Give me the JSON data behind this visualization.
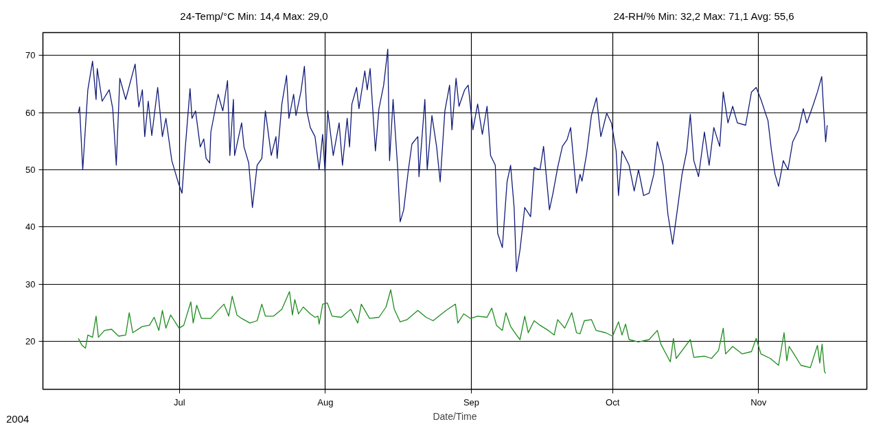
{
  "chart_data": {
    "type": "line",
    "xlabel": "Date/Time",
    "annotations": [
      "24-Temp/°C Min: 14,4 Max: 29,0",
      "24-RH/% Min: 32,2 Max: 71,1 Avg: 55,6",
      "2004"
    ],
    "xlim": [
      "2004-06-02",
      "2004-11-24"
    ],
    "ylim": [
      11.6,
      74
    ],
    "xticks": [
      {
        "value": "2004-07-01",
        "label": "Jul"
      },
      {
        "value": "2004-08-01",
        "label": "Aug"
      },
      {
        "value": "2004-09-01",
        "label": "Sep"
      },
      {
        "value": "2004-10-01",
        "label": "Oct"
      },
      {
        "value": "2004-11-01",
        "label": "Nov"
      }
    ],
    "yticks": [
      20,
      30,
      40,
      50,
      60,
      70
    ],
    "grid": true,
    "series": [
      {
        "color": "#101a78",
        "x": [
          "2004-06-09T13:00",
          "2004-06-09T19:00",
          "2004-06-10T11:00",
          "2004-06-11T13:00",
          "2004-06-12T13:00",
          "2004-06-13T07:00",
          "2004-06-13T13:00",
          "2004-06-14T14:00",
          "2004-06-16T02:00",
          "2004-06-16T20:00",
          "2004-06-17T14:00",
          "2004-06-18T08:00",
          "2004-06-19T14:00",
          "2004-06-21T14:00",
          "2004-06-22T09:00",
          "2004-06-23T03:00",
          "2004-06-23T15:00",
          "2004-06-24T09:00",
          "2004-06-25T03:00",
          "2004-06-26T09:00",
          "2004-06-27T09:00",
          "2004-06-28T03:00",
          "2004-06-29T09:00",
          "2004-06-30T16:00",
          "2004-07-01T13:00",
          "2004-07-02T06:00",
          "2004-07-03T06:00",
          "2004-07-03T16:00",
          "2004-07-04T10:00",
          "2004-07-05T10:00",
          "2004-07-06T04:00",
          "2004-07-06T16:00",
          "2004-07-07T10:00",
          "2004-07-07T16:00",
          "2004-07-09T05:00",
          "2004-07-10T05:00",
          "2004-07-11T05:00",
          "2004-07-11T17:00",
          "2004-07-12T11:00",
          "2004-07-12T17:00",
          "2004-07-14T05:00",
          "2004-07-14T17:00",
          "2004-07-15T17:00",
          "2004-07-16T12:00",
          "2004-07-17T12:00",
          "2004-07-18T12:00",
          "2004-07-19T06:00",
          "2004-07-20T12:00",
          "2004-07-21T12:00",
          "2004-07-21T18:00",
          "2004-07-22T18:00",
          "2004-07-23T18:00",
          "2004-07-24T06:00",
          "2004-07-25T06:00",
          "2004-07-25T18:00",
          "2004-07-26T19:00",
          "2004-07-27T13:00",
          "2004-07-28T01:00",
          "2004-07-28T19:00",
          "2004-07-29T19:00",
          "2004-07-30T16:00",
          "2004-07-31T10:00",
          "2004-07-31T22:00",
          "2004-08-01T12:00",
          "2004-08-02T16:00",
          "2004-08-03T22:00",
          "2004-08-04T15:00",
          "2004-08-05T15:00",
          "2004-08-06T03:00",
          "2004-08-06T15:00",
          "2004-08-07T15:00",
          "2004-08-08T03:00",
          "2004-08-09T09:00",
          "2004-08-09T21:00",
          "2004-08-10T12:00",
          "2004-08-11T15:00",
          "2004-08-12T09:00",
          "2004-08-13T09:00",
          "2004-08-14T06:00",
          "2004-08-14T15:00",
          "2004-08-15T09:00",
          "2004-08-16T09:00",
          "2004-08-16T21:00",
          "2004-08-17T15:00",
          "2004-08-18T15:00",
          "2004-08-19T09:00",
          "2004-08-20T15:00",
          "2004-08-20T21:00",
          "2004-08-22T03:00",
          "2004-08-22T15:00",
          "2004-08-23T15:00",
          "2004-08-24T15:00",
          "2004-08-25T09:00",
          "2004-08-26T09:00",
          "2004-08-27T09:00",
          "2004-08-27T21:00",
          "2004-08-28T18:00",
          "2004-08-29T09:00",
          "2004-08-30T14:00",
          "2004-08-31T08:00",
          "2004-09-01T08:00",
          "2004-09-02T08:00",
          "2004-09-03T08:00",
          "2004-09-04T08:00",
          "2004-09-05T02:00",
          "2004-09-06T02:00",
          "2004-09-06T14:00",
          "2004-09-07T14:00",
          "2004-09-08T14:00",
          "2004-09-09T08:00",
          "2004-09-10T02:00",
          "2004-09-10T14:00",
          "2004-09-11T08:00",
          "2004-09-12T08:00",
          "2004-09-13T14:00",
          "2004-09-14T08:00",
          "2004-09-15T14:00",
          "2004-09-16T08:00",
          "2004-09-17T14:00",
          "2004-09-18T08:00",
          "2004-09-19T08:00",
          "2004-09-20T08:00",
          "2004-09-21T08:00",
          "2004-09-22T02:00",
          "2004-09-23T08:00",
          "2004-09-24T02:00",
          "2004-09-24T12:00",
          "2004-09-25T12:00",
          "2004-09-26T12:00",
          "2004-09-27T14:00",
          "2004-09-28T12:00",
          "2004-09-29T18:00",
          "2004-09-30T18:00",
          "2004-10-01T18:00",
          "2004-10-02T06:00",
          "2004-10-03T00:00",
          "2004-10-04T12:00",
          "2004-10-05T14:00",
          "2004-10-06T12:00",
          "2004-10-07T14:00",
          "2004-10-08T18:00",
          "2004-10-09T18:00",
          "2004-10-10T12:00",
          "2004-10-11T18:00",
          "2004-10-12T18:00",
          "2004-10-13T18:00",
          "2004-10-14T18:00",
          "2004-10-15T18:00",
          "2004-10-16T18:00",
          "2004-10-17T12:00",
          "2004-10-18T06:00",
          "2004-10-19T06:00",
          "2004-10-20T12:00",
          "2004-10-21T12:00",
          "2004-10-22T12:00",
          "2004-10-23T18:00",
          "2004-10-24T12:00",
          "2004-10-25T12:00",
          "2004-10-26T12:00",
          "2004-10-27T12:00",
          "2004-10-29T06:00",
          "2004-10-30T12:00",
          "2004-10-31T12:00",
          "2004-11-01T12:00",
          "2004-11-03T00:00",
          "2004-11-03T18:00",
          "2004-11-04T12:00",
          "2004-11-05T06:00",
          "2004-11-06T06:00",
          "2004-11-07T06:00",
          "2004-11-08T06:00",
          "2004-11-09T12:00",
          "2004-11-10T12:00",
          "2004-11-11T06:00",
          "2004-11-12T12:00",
          "2004-11-13T12:00",
          "2004-11-14T10:00",
          "2004-11-14T18:00",
          "2004-11-15T06:00",
          "2004-11-15T14:00"
        ],
        "values": [
          60,
          61,
          50,
          64,
          69,
          62.3,
          67.7,
          62,
          64,
          60.7,
          50.8,
          66,
          62.3,
          68.5,
          61,
          64,
          55.8,
          62,
          56,
          64.4,
          55.8,
          59,
          51.6,
          48,
          45.9,
          54,
          64.2,
          59,
          60.3,
          54,
          55.4,
          52,
          51.2,
          56.6,
          63.2,
          60.3,
          65.6,
          52.5,
          62.3,
          52.5,
          58.2,
          54,
          51.2,
          43.4,
          50.8,
          52,
          60.3,
          52.5,
          55.8,
          52,
          61.5,
          66.5,
          59,
          63.2,
          59.5,
          63.6,
          68.1,
          60.3,
          57.4,
          55.8,
          50,
          56.2,
          49.6,
          60.3,
          52.5,
          58.2,
          50.8,
          59,
          54,
          61.5,
          64.4,
          60.7,
          67.3,
          64,
          67.7,
          53.3,
          60.7,
          64.8,
          71.1,
          51.6,
          62.3,
          50,
          40.9,
          43,
          50,
          54.5,
          55.8,
          48.8,
          62.3,
          50,
          59.5,
          54,
          47.9,
          60.3,
          64.8,
          57,
          66,
          61.1,
          64,
          64.8,
          57,
          61.5,
          56.2,
          61.1,
          52.5,
          50.8,
          38.9,
          36.4,
          47.9,
          50.8,
          43.4,
          32.2,
          36,
          43.4,
          41.8,
          50.4,
          50,
          54.1,
          43,
          45.9,
          50.4,
          54.1,
          55.3,
          57.4,
          45.9,
          49.2,
          48,
          52.9,
          59.5,
          62.6,
          55.8,
          59.9,
          58.2,
          53.3,
          45.5,
          53.3,
          50.8,
          46.3,
          50,
          45.5,
          45.9,
          49.2,
          54.9,
          50.8,
          42.2,
          37,
          43,
          49.2,
          53.3,
          59.7,
          51.6,
          48.8,
          56.6,
          50.8,
          57.4,
          54.1,
          63.6,
          58.2,
          61.1,
          58.2,
          57.8,
          63.6,
          64.4,
          62.3,
          58.6,
          53.3,
          49.2,
          47.1,
          51.6,
          50,
          54.9,
          57,
          60.7,
          58.2,
          61.1,
          63.6,
          66.3,
          61.5,
          54.9,
          57.8
        ]
      },
      {
        "color": "#1e8c1e",
        "x": [
          "2004-06-09T13:00",
          "2004-06-10T07:00",
          "2004-06-11T01:00",
          "2004-06-11T13:00",
          "2004-06-12T13:00",
          "2004-06-13T07:00",
          "2004-06-13T19:00",
          "2004-06-15T02:00",
          "2004-06-16T14:00",
          "2004-06-18T02:00",
          "2004-06-19T14:00",
          "2004-06-20T08:00",
          "2004-06-21T02:00",
          "2004-06-23T03:00",
          "2004-06-24T15:00",
          "2004-06-25T15:00",
          "2004-06-26T15:00",
          "2004-06-27T09:00",
          "2004-06-28T03:00",
          "2004-06-29T03:00",
          "2004-06-30T22:00",
          "2004-07-01T22:00",
          "2004-07-03T10:00",
          "2004-07-03T22:00",
          "2004-07-04T16:00",
          "2004-07-05T16:00",
          "2004-07-07T16:00",
          "2004-07-08T23:00",
          "2004-07-10T11:00",
          "2004-07-11T11:00",
          "2004-07-12T05:00",
          "2004-07-13T05:00",
          "2004-07-14T05:00",
          "2004-07-15T23:00",
          "2004-07-17T12:00",
          "2004-07-18T12:00",
          "2004-07-19T06:00",
          "2004-07-21T00:00",
          "2004-07-22T18:00",
          "2004-07-24T09:00",
          "2004-07-25T00:00",
          "2004-07-25T12:00",
          "2004-07-26T07:00",
          "2004-07-27T07:00",
          "2004-07-28T19:00",
          "2004-07-29T19:00",
          "2004-07-30T10:00",
          "2004-07-30T16:00",
          "2004-07-31T10:00",
          "2004-08-01T10:00",
          "2004-08-02T10:00",
          "2004-08-04T09:00",
          "2004-08-06T09:00",
          "2004-08-07T21:00",
          "2004-08-08T15:00",
          "2004-08-10T09:00",
          "2004-08-12T09:00",
          "2004-08-13T21:00",
          "2004-08-14T21:00",
          "2004-08-15T15:00",
          "2004-08-16T21:00",
          "2004-08-18T09:00",
          "2004-08-20T15:00",
          "2004-08-22T09:00",
          "2004-08-23T21:00",
          "2004-08-26T15:00",
          "2004-08-28T15:00",
          "2004-08-29T03:00",
          "2004-08-30T09:00",
          "2004-08-31T20:00",
          "2004-09-02T08:00",
          "2004-09-04T08:00",
          "2004-09-05T08:00",
          "2004-09-06T08:00",
          "2004-09-07T14:00",
          "2004-09-08T08:00",
          "2004-09-09T08:00",
          "2004-09-10T14:00",
          "2004-09-11T08:00",
          "2004-09-12T08:00",
          "2004-09-13T02:00",
          "2004-09-14T08:00",
          "2004-09-15T14:00",
          "2004-09-17T08:00",
          "2004-09-18T14:00",
          "2004-09-19T08:00",
          "2004-09-20T20:00",
          "2004-09-22T08:00",
          "2004-09-23T08:00",
          "2004-09-24T02:00",
          "2004-09-25T00:00",
          "2004-09-26T12:00",
          "2004-09-27T12:00",
          "2004-09-29T12:00",
          "2004-10-01T00:00",
          "2004-10-02T06:00",
          "2004-10-03T00:00",
          "2004-10-03T18:00",
          "2004-10-04T12:00",
          "2004-10-06T12:00",
          "2004-10-08T18:00",
          "2004-10-10T12:00",
          "2004-10-11T06:00",
          "2004-10-13T06:00",
          "2004-10-13T22:00",
          "2004-10-14T12:00",
          "2004-10-17T12:00",
          "2004-10-18T06:00",
          "2004-10-20T12:00",
          "2004-10-22T00:00",
          "2004-10-23T12:00",
          "2004-10-24T12:00",
          "2004-10-25T00:00",
          "2004-10-26T12:00",
          "2004-10-28T12:00",
          "2004-10-30T12:00",
          "2004-10-31T12:00",
          "2004-11-01T12:00",
          "2004-11-03T12:00",
          "2004-11-05T06:00",
          "2004-11-06T10:00",
          "2004-11-07T00:00",
          "2004-11-07T12:00",
          "2004-11-08T12:00",
          "2004-11-10T00:00",
          "2004-11-12T00:00",
          "2004-11-13T12:00",
          "2004-11-14T00:00",
          "2004-11-14T12:00",
          "2004-11-15T00:00",
          "2004-11-15T06:00"
        ],
        "values": [
          20.5,
          19.3,
          18.8,
          21.1,
          20.7,
          24.4,
          20.7,
          21.9,
          22.1,
          20.9,
          21.1,
          25,
          21.5,
          22.6,
          22.8,
          24.2,
          21.9,
          25.4,
          22.3,
          24.6,
          22.3,
          22.8,
          26.9,
          23.2,
          26.3,
          24,
          24,
          25.2,
          26.5,
          24.4,
          27.9,
          24.6,
          24,
          23.2,
          23.6,
          26.5,
          24.4,
          24.4,
          25.6,
          28.7,
          24.6,
          27.3,
          24.8,
          26,
          24.8,
          24.2,
          24.4,
          23,
          26.5,
          26.7,
          24.4,
          24.2,
          25.6,
          23.2,
          26.5,
          24,
          24.2,
          26,
          29,
          25.6,
          23.4,
          23.8,
          25.4,
          24.2,
          23.6,
          25.4,
          26.5,
          23.2,
          24.8,
          24,
          24.4,
          24.2,
          25.8,
          22.8,
          21.9,
          25,
          22.6,
          21.1,
          20.3,
          24.4,
          21.5,
          23.6,
          22.8,
          21.9,
          21.1,
          23.8,
          22.3,
          25,
          21.5,
          21.3,
          23.6,
          23.8,
          21.9,
          21.5,
          20.9,
          23.4,
          21.1,
          23,
          20.3,
          19.9,
          20.3,
          21.9,
          19.5,
          16.4,
          20.5,
          17,
          20.3,
          17.2,
          17.4,
          17,
          18.4,
          22.3,
          17.8,
          19.1,
          17.8,
          18.2,
          20.5,
          17.8,
          17,
          15.8,
          21.5,
          16.6,
          19.1,
          17.8,
          15.8,
          15.4,
          19.3,
          16.2,
          19.5,
          14.7,
          14.4
        ]
      }
    ]
  }
}
